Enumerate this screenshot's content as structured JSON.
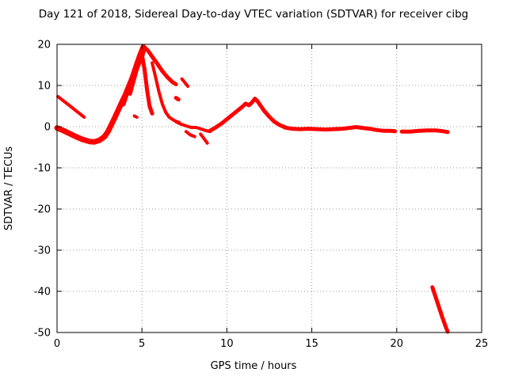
{
  "chart_data": {
    "type": "scatter",
    "title": "Day 121 of 2018, Sidereal Day-to-day VTEC variation (SDTVAR) for receiver cibg",
    "xlabel": "GPS time / hours",
    "ylabel": "SDTVAR / TECUs",
    "xlim": [
      0,
      25
    ],
    "ylim": [
      -50,
      20
    ],
    "xticks": [
      0,
      5,
      10,
      15,
      20,
      25
    ],
    "yticks": [
      -50,
      -40,
      -30,
      -20,
      -10,
      0,
      10,
      20
    ],
    "grid": true,
    "grid_color": "#9a9a9a",
    "point_color": "#ff0000",
    "legend": "none",
    "series": [
      {
        "name": "early-descending-streak",
        "width": 4,
        "points": [
          [
            0.05,
            7.3
          ],
          [
            0.4,
            6.2
          ],
          [
            0.8,
            4.9
          ],
          [
            1.2,
            3.6
          ],
          [
            1.6,
            2.3
          ]
        ]
      },
      {
        "name": "main-band-rise",
        "width": 7,
        "points": [
          [
            0.0,
            -0.3
          ],
          [
            0.3,
            -0.8
          ],
          [
            0.7,
            -1.6
          ],
          [
            1.1,
            -2.4
          ],
          [
            1.5,
            -3.1
          ],
          [
            1.9,
            -3.6
          ],
          [
            2.2,
            -3.7
          ],
          [
            2.5,
            -3.3
          ],
          [
            2.8,
            -2.4
          ],
          [
            3.0,
            -1.2
          ],
          [
            3.2,
            0.5
          ],
          [
            3.4,
            2.2
          ],
          [
            3.6,
            4.0
          ],
          [
            3.8,
            5.8
          ],
          [
            4.0,
            7.5
          ],
          [
            4.2,
            9.5
          ],
          [
            4.4,
            11.5
          ],
          [
            4.6,
            13.5
          ],
          [
            4.8,
            15.5
          ],
          [
            5.0,
            17.5
          ],
          [
            5.1,
            19.0
          ]
        ]
      },
      {
        "name": "second-rise",
        "width": 6,
        "points": [
          [
            3.9,
            5.5
          ],
          [
            4.1,
            8.0
          ],
          [
            4.3,
            10.5
          ],
          [
            4.5,
            13.0
          ],
          [
            4.7,
            15.5
          ],
          [
            4.9,
            17.8
          ],
          [
            5.05,
            19.3
          ]
        ]
      },
      {
        "name": "peak-drop-branch",
        "width": 5,
        "points": [
          [
            4.3,
            8.0
          ],
          [
            4.5,
            11.0
          ],
          [
            4.7,
            14.0
          ],
          [
            4.9,
            16.5
          ],
          [
            5.0,
            17.5
          ],
          [
            5.15,
            14.0
          ],
          [
            5.3,
            9.0
          ],
          [
            5.45,
            5.0
          ],
          [
            5.6,
            3.2
          ]
        ]
      },
      {
        "name": "peak-decline",
        "width": 5,
        "points": [
          [
            5.1,
            19.5
          ],
          [
            5.35,
            18.5
          ],
          [
            5.6,
            17.0
          ],
          [
            5.9,
            15.3
          ],
          [
            6.2,
            13.5
          ],
          [
            6.5,
            12.0
          ],
          [
            6.8,
            10.8
          ],
          [
            7.0,
            10.3
          ]
        ]
      },
      {
        "name": "decline-spur",
        "width": 4,
        "points": [
          [
            7.35,
            11.6
          ],
          [
            7.55,
            10.6
          ],
          [
            7.7,
            9.8
          ]
        ]
      },
      {
        "name": "steep-drop-branch",
        "width": 4,
        "points": [
          [
            5.6,
            15.5
          ],
          [
            5.8,
            12.0
          ],
          [
            6.0,
            8.5
          ],
          [
            6.2,
            5.5
          ],
          [
            6.4,
            3.5
          ],
          [
            6.6,
            2.3
          ],
          [
            6.9,
            1.5
          ],
          [
            7.2,
            1.0
          ]
        ]
      },
      {
        "name": "small-cluster-left-of-peak",
        "width": 4,
        "points": [
          [
            4.55,
            2.6
          ],
          [
            4.7,
            2.3
          ]
        ]
      },
      {
        "name": "small-cluster-after-decline",
        "width": 5,
        "points": [
          [
            7.0,
            7.0
          ],
          [
            7.15,
            6.6
          ]
        ]
      },
      {
        "name": "mid-band",
        "width": 4,
        "points": [
          [
            7.0,
            1.2
          ],
          [
            7.3,
            0.6
          ],
          [
            7.6,
            0.2
          ],
          [
            7.9,
            -0.2
          ],
          [
            8.2,
            -0.2
          ],
          [
            8.5,
            -0.6
          ],
          [
            8.8,
            -1.0
          ],
          [
            9.0,
            -1.2
          ]
        ]
      },
      {
        "name": "mid-dip-a",
        "width": 4,
        "points": [
          [
            7.6,
            -1.2
          ],
          [
            7.85,
            -2.0
          ],
          [
            8.1,
            -2.4
          ]
        ]
      },
      {
        "name": "mid-dip-b",
        "width": 4,
        "points": [
          [
            8.45,
            -1.8
          ],
          [
            8.65,
            -2.9
          ],
          [
            8.85,
            -4.0
          ]
        ]
      },
      {
        "name": "midday-bump",
        "width": 5,
        "points": [
          [
            9.0,
            -1.0
          ],
          [
            9.3,
            -0.3
          ],
          [
            9.7,
            0.8
          ],
          [
            10.0,
            1.8
          ],
          [
            10.3,
            2.8
          ],
          [
            10.6,
            3.8
          ],
          [
            10.9,
            4.8
          ],
          [
            11.1,
            5.6
          ],
          [
            11.3,
            5.2
          ],
          [
            11.5,
            6.0
          ],
          [
            11.65,
            6.8
          ],
          [
            11.8,
            6.2
          ],
          [
            12.0,
            5.0
          ],
          [
            12.2,
            3.8
          ],
          [
            12.5,
            2.4
          ],
          [
            12.8,
            1.2
          ],
          [
            13.1,
            0.4
          ],
          [
            13.4,
            -0.1
          ]
        ]
      },
      {
        "name": "flat-band-a",
        "width": 5,
        "points": [
          [
            13.4,
            -0.2
          ],
          [
            13.8,
            -0.5
          ],
          [
            14.3,
            -0.6
          ],
          [
            14.8,
            -0.5
          ],
          [
            15.3,
            -0.6
          ],
          [
            15.8,
            -0.7
          ],
          [
            16.3,
            -0.6
          ],
          [
            16.8,
            -0.5
          ],
          [
            17.2,
            -0.3
          ],
          [
            17.6,
            -0.1
          ],
          [
            18.0,
            -0.3
          ],
          [
            18.4,
            -0.5
          ],
          [
            18.8,
            -0.8
          ],
          [
            19.2,
            -1.0
          ],
          [
            19.6,
            -1.0
          ],
          [
            19.9,
            -1.1
          ]
        ]
      },
      {
        "name": "flat-band-b",
        "width": 5,
        "points": [
          [
            20.3,
            -1.2
          ],
          [
            20.8,
            -1.2
          ],
          [
            21.3,
            -1.0
          ],
          [
            21.8,
            -0.9
          ],
          [
            22.3,
            -0.9
          ],
          [
            22.7,
            -1.1
          ],
          [
            23.0,
            -1.3
          ]
        ]
      },
      {
        "name": "bottom-right-streak",
        "width": 5,
        "points": [
          [
            22.1,
            -39.0
          ],
          [
            22.3,
            -41.5
          ],
          [
            22.5,
            -44.0
          ],
          [
            22.7,
            -46.5
          ],
          [
            22.9,
            -48.8
          ],
          [
            23.0,
            -49.8
          ]
        ]
      }
    ]
  }
}
